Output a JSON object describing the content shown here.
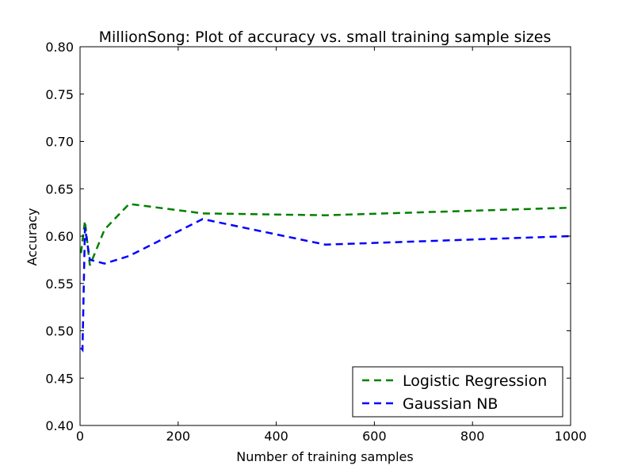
{
  "chart_data": {
    "type": "line",
    "title": "MillionSong: Plot of accuracy vs. small training sample sizes",
    "xlabel": "Number of training samples",
    "ylabel": "Accuracy",
    "xlim": [
      0,
      1000
    ],
    "ylim": [
      0.4,
      0.8
    ],
    "xticks": [
      0,
      200,
      400,
      600,
      800,
      1000
    ],
    "xtick_labels": [
      "0",
      "200",
      "400",
      "600",
      "800",
      "1000"
    ],
    "yticks": [
      0.4,
      0.45,
      0.5,
      0.55,
      0.6,
      0.65,
      0.7,
      0.75,
      0.8
    ],
    "ytick_labels": [
      "0.40",
      "0.45",
      "0.50",
      "0.55",
      "0.60",
      "0.65",
      "0.70",
      "0.75",
      "0.80"
    ],
    "grid": false,
    "legend_position": "lower-right",
    "series": [
      {
        "name": "Logistic Regression",
        "color": "#008000",
        "style": "dashed",
        "x": [
          2,
          5,
          10,
          20,
          50,
          100,
          250,
          500,
          1000
        ],
        "y": [
          0.582,
          0.595,
          0.616,
          0.569,
          0.607,
          0.634,
          0.624,
          0.622,
          0.63
        ]
      },
      {
        "name": "Gaussian NB",
        "color": "#0000ff",
        "style": "dashed",
        "x": [
          2,
          5,
          10,
          20,
          50,
          100,
          250,
          500,
          1000
        ],
        "y": [
          0.482,
          0.48,
          0.609,
          0.575,
          0.571,
          0.579,
          0.618,
          0.591,
          0.6
        ]
      }
    ]
  }
}
